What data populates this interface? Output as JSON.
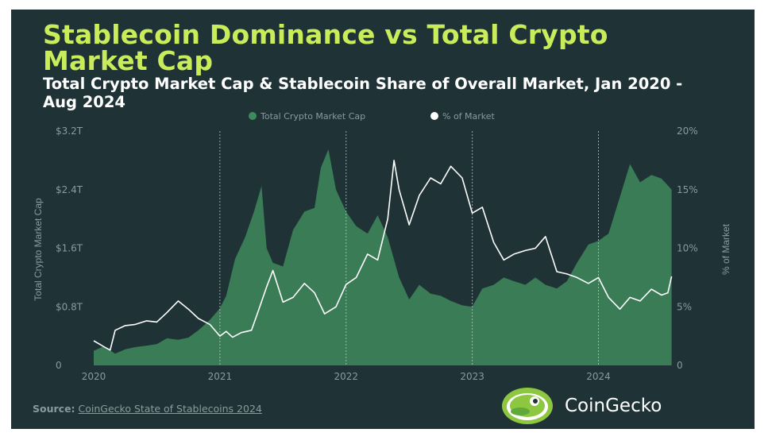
{
  "header": {
    "title": "Stablecoin Dominance vs Total Crypto Market Cap",
    "subtitle": "Total Crypto Market Cap & Stablecoin Share of Overall Market, Jan 2020 - Aug 2024"
  },
  "footer": {
    "source_label": "Source:",
    "source_link": "CoinGecko State of Stablecoins 2024",
    "brand": "CoinGecko"
  },
  "colors": {
    "background": "#1f3337",
    "title": "#c8ec5a",
    "area": "#3f8a5c",
    "line": "#ffffff",
    "axis_text": "#8a9a9d"
  },
  "icons": {
    "logo": "gecko-logo-icon"
  },
  "chart_data": {
    "type": "area",
    "x_unit": "year",
    "legend": [
      "Total Crypto Market Cap",
      "% of Market"
    ],
    "legend_position": "top-center",
    "ylabel": "Total Crypto Market Cap",
    "y2label": "% of Market",
    "x_ticks": [
      "2020",
      "2021",
      "2022",
      "2023",
      "2024"
    ],
    "y_ticks": [
      "0",
      "$0.8T",
      "$1.6T",
      "$2.4T",
      "$3.2T"
    ],
    "y2_ticks": [
      "0",
      "5%",
      "10%",
      "15%",
      "20%"
    ],
    "ylim": [
      0,
      3.2
    ],
    "y2lim": [
      0,
      20
    ],
    "vertical_gridlines": [
      "2021",
      "2022",
      "2023",
      "2024"
    ],
    "series": [
      {
        "name": "Total Crypto Market Cap",
        "type": "area",
        "unit": "trillion USD",
        "x": [
          2020.0,
          2020.08,
          2020.17,
          2020.25,
          2020.33,
          2020.42,
          2020.5,
          2020.58,
          2020.67,
          2020.75,
          2020.83,
          2020.92,
          2021.0,
          2021.05,
          2021.12,
          2021.2,
          2021.27,
          2021.33,
          2021.37,
          2021.42,
          2021.5,
          2021.58,
          2021.67,
          2021.75,
          2021.8,
          2021.86,
          2021.92,
          2022.0,
          2022.08,
          2022.17,
          2022.25,
          2022.33,
          2022.42,
          2022.5,
          2022.58,
          2022.67,
          2022.75,
          2022.83,
          2022.92,
          2023.0,
          2023.08,
          2023.17,
          2023.25,
          2023.33,
          2023.42,
          2023.5,
          2023.58,
          2023.67,
          2023.75,
          2023.83,
          2023.92,
          2024.0,
          2024.08,
          2024.17,
          2024.25,
          2024.33,
          2024.42,
          2024.5,
          2024.58
        ],
        "values": [
          0.2,
          0.26,
          0.16,
          0.22,
          0.25,
          0.27,
          0.29,
          0.37,
          0.35,
          0.38,
          0.48,
          0.62,
          0.78,
          0.95,
          1.45,
          1.75,
          2.1,
          2.45,
          1.6,
          1.4,
          1.35,
          1.85,
          2.1,
          2.15,
          2.7,
          2.95,
          2.4,
          2.1,
          1.9,
          1.8,
          2.05,
          1.75,
          1.2,
          0.9,
          1.1,
          0.98,
          0.95,
          0.88,
          0.82,
          0.8,
          1.05,
          1.1,
          1.2,
          1.15,
          1.1,
          1.2,
          1.1,
          1.05,
          1.15,
          1.4,
          1.65,
          1.7,
          1.8,
          2.3,
          2.75,
          2.5,
          2.6,
          2.55,
          2.4
        ]
      },
      {
        "name": "% of Market",
        "type": "line",
        "unit": "percent",
        "x": [
          2020.0,
          2020.08,
          2020.13,
          2020.17,
          2020.25,
          2020.33,
          2020.42,
          2020.5,
          2020.58,
          2020.67,
          2020.75,
          2020.83,
          2020.92,
          2021.0,
          2021.05,
          2021.1,
          2021.17,
          2021.25,
          2021.3,
          2021.37,
          2021.42,
          2021.5,
          2021.58,
          2021.67,
          2021.75,
          2021.83,
          2021.92,
          2022.0,
          2022.08,
          2022.17,
          2022.25,
          2022.33,
          2022.38,
          2022.42,
          2022.5,
          2022.58,
          2022.67,
          2022.75,
          2022.83,
          2022.92,
          2023.0,
          2023.08,
          2023.17,
          2023.25,
          2023.33,
          2023.42,
          2023.5,
          2023.58,
          2023.67,
          2023.75,
          2023.83,
          2023.92,
          2024.0,
          2024.08,
          2024.17,
          2024.25,
          2024.33,
          2024.42,
          2024.5,
          2024.55,
          2024.58
        ],
        "values": [
          2.1,
          1.6,
          1.3,
          3.0,
          3.4,
          3.5,
          3.8,
          3.7,
          4.5,
          5.5,
          4.8,
          4.0,
          3.5,
          2.5,
          2.9,
          2.4,
          2.8,
          3.0,
          4.5,
          6.7,
          8.1,
          5.4,
          5.8,
          7.0,
          6.2,
          4.4,
          5.0,
          6.9,
          7.5,
          9.5,
          9.0,
          12.5,
          17.5,
          15.0,
          12.0,
          14.5,
          16.0,
          15.5,
          17.0,
          16.0,
          13.0,
          13.5,
          10.5,
          9.0,
          9.5,
          9.8,
          10.0,
          11.0,
          8.0,
          7.8,
          7.5,
          7.0,
          7.5,
          5.8,
          4.8,
          5.8,
          5.5,
          6.5,
          6.0,
          6.2,
          7.6
        ]
      }
    ]
  }
}
